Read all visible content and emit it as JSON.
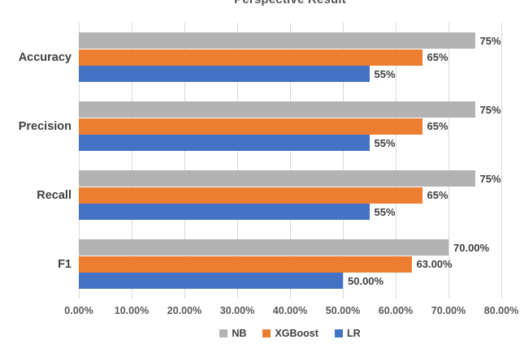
{
  "chart_data": {
    "type": "bar",
    "orientation": "horizontal",
    "title": "Perspective Result",
    "categories": [
      "Accuracy",
      "Precision",
      "Recall",
      "F1"
    ],
    "series": [
      {
        "name": "NB",
        "color": "#b3b3b3",
        "values": [
          75,
          75,
          75,
          70
        ],
        "labels": [
          "75%",
          "75%",
          "75%",
          "70.00%"
        ]
      },
      {
        "name": "XGBoost",
        "color": "#ed7d31",
        "values": [
          65,
          65,
          65,
          63
        ],
        "labels": [
          "65%",
          "65%",
          "65%",
          "63.00%"
        ]
      },
      {
        "name": "LR",
        "color": "#4472c4",
        "values": [
          55,
          55,
          55,
          50
        ],
        "labels": [
          "55%",
          "55%",
          "55%",
          "50.00%"
        ]
      }
    ],
    "xlim": [
      0,
      80
    ],
    "x_tick_labels": [
      "0.00%",
      "10.00%",
      "20.00%",
      "30.00%",
      "40.00%",
      "50.00%",
      "60.00%",
      "70.00%",
      "80.00%"
    ],
    "grid": true,
    "gridline_color": "#d9d9d9",
    "legend_position": "bottom"
  }
}
